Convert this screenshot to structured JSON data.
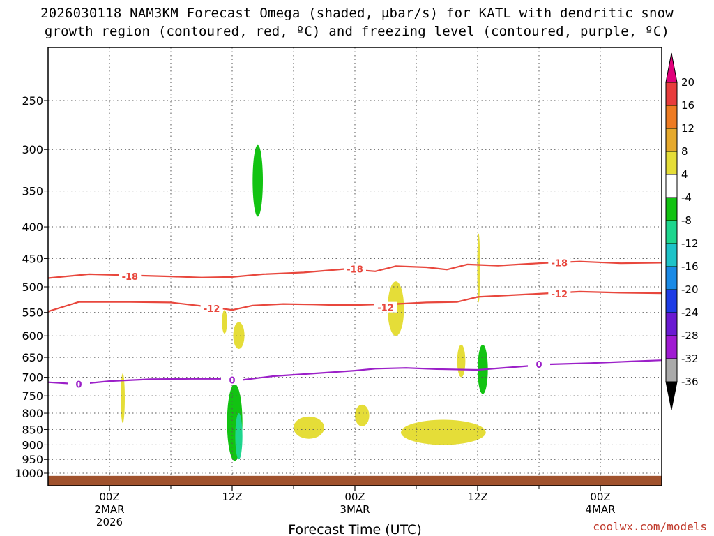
{
  "title_line1": "2026030118 NAM3KM Forecast Omega (shaded, μbar/s) for KATL with dendritic snow",
  "title_line2": "growth region (contoured, red, ºC) and freezing level (contoured, purple, ºC)",
  "credit": "coolwx.com/models",
  "chart_data": {
    "type": "time-height cross section",
    "title": "2026030118 NAM3KM Forecast Omega (shaded, μbar/s) for KATL with dendritic snow growth region (contoured, red, ºC) and freezing level (contoured, purple, ºC)",
    "xlabel": "Forecast Time (UTC)",
    "ylabel": "Pressure (hPa)",
    "x_range_hours_from_2026030200": [
      -6,
      54
    ],
    "y_range_hPa": [
      200,
      1030
    ],
    "y_ticks": [
      "250",
      "300",
      "350",
      "400",
      "450",
      "500",
      "550",
      "600",
      "650",
      "700",
      "750",
      "800",
      "850",
      "900",
      "950",
      "1000"
    ],
    "x_ticks": [
      {
        "hour": 0,
        "label": "00Z",
        "date": "2MAR",
        "year": "2026"
      },
      {
        "hour": 12,
        "label": "12Z",
        "date": "",
        "year": ""
      },
      {
        "hour": 24,
        "label": "00Z",
        "date": "3MAR",
        "year": ""
      },
      {
        "hour": 36,
        "label": "12Z",
        "date": "",
        "year": ""
      },
      {
        "hour": 48,
        "label": "00Z",
        "date": "4MAR",
        "year": ""
      }
    ],
    "colorbar": {
      "labels": [
        "20",
        "16",
        "12",
        "8",
        "4",
        "-4",
        "-8",
        "-12",
        "-16",
        "-20",
        "-24",
        "-28",
        "-32",
        "-36"
      ],
      "colors": [
        "#e0007a",
        "#e83c3c",
        "#ee7b22",
        "#e6a92c",
        "#e5dd38",
        "#ffffff",
        "#12c312",
        "#1ed68e",
        "#1ec3c8",
        "#1a8ae6",
        "#1e3ce6",
        "#6a1ad2",
        "#a01ad2",
        "#aaaaaa",
        "#000000"
      ]
    },
    "contours": [
      {
        "name": "freezing level",
        "value": "0",
        "color": "#9b1fc8",
        "points": [
          [
            -6,
            713
          ],
          [
            -3,
            718
          ],
          [
            0,
            710
          ],
          [
            4,
            705
          ],
          [
            8,
            704
          ],
          [
            11,
            704
          ],
          [
            13,
            707
          ],
          [
            16,
            697
          ],
          [
            20,
            690
          ],
          [
            24,
            683
          ],
          [
            26,
            678
          ],
          [
            29,
            676
          ],
          [
            32,
            679
          ],
          [
            36,
            681
          ],
          [
            40,
            673
          ],
          [
            43,
            667
          ],
          [
            47,
            664
          ],
          [
            51,
            660
          ],
          [
            54,
            657
          ]
        ],
        "labels": [
          [
            -3,
            718
          ],
          [
            12,
            707
          ],
          [
            42,
            667
          ]
        ]
      },
      {
        "name": "dendritic top",
        "value": "-18",
        "color": "#e8473d",
        "points": [
          [
            -6,
            484
          ],
          [
            -2,
            477
          ],
          [
            2,
            479
          ],
          [
            6,
            481
          ],
          [
            9,
            483
          ],
          [
            12,
            482
          ],
          [
            15,
            477
          ],
          [
            19,
            474
          ],
          [
            23,
            468
          ],
          [
            26,
            472
          ],
          [
            28,
            463
          ],
          [
            31,
            465
          ],
          [
            33,
            469
          ],
          [
            35,
            460
          ],
          [
            38,
            462
          ],
          [
            42,
            458
          ],
          [
            46,
            455
          ],
          [
            50,
            458
          ],
          [
            54,
            457
          ]
        ],
        "labels": [
          [
            2,
            481
          ],
          [
            24,
            468
          ],
          [
            44,
            457
          ]
        ]
      },
      {
        "name": "dendritic bottom",
        "value": "-12",
        "color": "#e8473d",
        "points": [
          [
            -6,
            548
          ],
          [
            -3,
            529
          ],
          [
            2,
            529
          ],
          [
            6,
            530
          ],
          [
            9,
            537
          ],
          [
            11,
            542
          ],
          [
            12,
            545
          ],
          [
            14,
            536
          ],
          [
            17,
            533
          ],
          [
            20,
            534
          ],
          [
            22,
            535
          ],
          [
            24,
            535
          ],
          [
            26,
            534
          ],
          [
            28,
            533
          ],
          [
            31,
            530
          ],
          [
            34,
            529
          ],
          [
            36,
            519
          ],
          [
            38,
            517
          ],
          [
            42,
            513
          ],
          [
            46,
            509
          ],
          [
            50,
            511
          ],
          [
            54,
            512
          ]
        ],
        "labels": [
          [
            10,
            542
          ],
          [
            27,
            540
          ],
          [
            44,
            513
          ]
        ]
      }
    ],
    "omega_shaded_regions": [
      {
        "omega_range": "-4 to -8",
        "color": "#12c312",
        "hour_range": [
          14,
          15
        ],
        "p_range": [
          295,
          385
        ]
      },
      {
        "omega_range": "-4 to -8",
        "color": "#12c312",
        "hour_range": [
          11.5,
          13
        ],
        "p_range": [
          718,
          955
        ]
      },
      {
        "omega_range": "-8 to -12",
        "color": "#1ed68e",
        "hour_range": [
          12.3,
          13
        ],
        "p_range": [
          800,
          950
        ]
      },
      {
        "omega_range": "-4 to -8",
        "color": "#12c312",
        "hour_range": [
          36,
          37
        ],
        "p_range": [
          620,
          745
        ]
      },
      {
        "omega_range": "4 to 8",
        "color": "#e5dd38",
        "hour_range": [
          1.1,
          1.5
        ],
        "p_range": [
          690,
          830
        ]
      },
      {
        "omega_range": "4 to 8",
        "color": "#e5dd38",
        "hour_range": [
          11,
          11.5
        ],
        "p_range": [
          545,
          595
        ]
      },
      {
        "omega_range": "4 to 8",
        "color": "#e5dd38",
        "hour_range": [
          12.1,
          13.2
        ],
        "p_range": [
          570,
          630
        ]
      },
      {
        "omega_range": "4 to 8",
        "color": "#e5dd38",
        "hour_range": [
          18,
          21
        ],
        "p_range": [
          810,
          880
        ]
      },
      {
        "omega_range": "4 to 8",
        "color": "#e5dd38",
        "hour_range": [
          24,
          25.4
        ],
        "p_range": [
          775,
          840
        ]
      },
      {
        "omega_range": "4 to 8",
        "color": "#e5dd38",
        "hour_range": [
          27.2,
          28.8
        ],
        "p_range": [
          490,
          600
        ]
      },
      {
        "omega_range": "4 to 8",
        "color": "#e5dd38",
        "hour_range": [
          28.5,
          36.8
        ],
        "p_range": [
          820,
          900
        ]
      },
      {
        "omega_range": "4 to 8",
        "color": "#e5dd38",
        "hour_range": [
          34,
          34.8
        ],
        "p_range": [
          620,
          700
        ]
      },
      {
        "omega_range": "4 to 8",
        "color": "#e5dd38",
        "hour_range": [
          36,
          36.2
        ],
        "p_range": [
          410,
          530
        ]
      }
    ],
    "ground": {
      "color": "#a0522d",
      "p_top_hPa": 1010
    }
  }
}
